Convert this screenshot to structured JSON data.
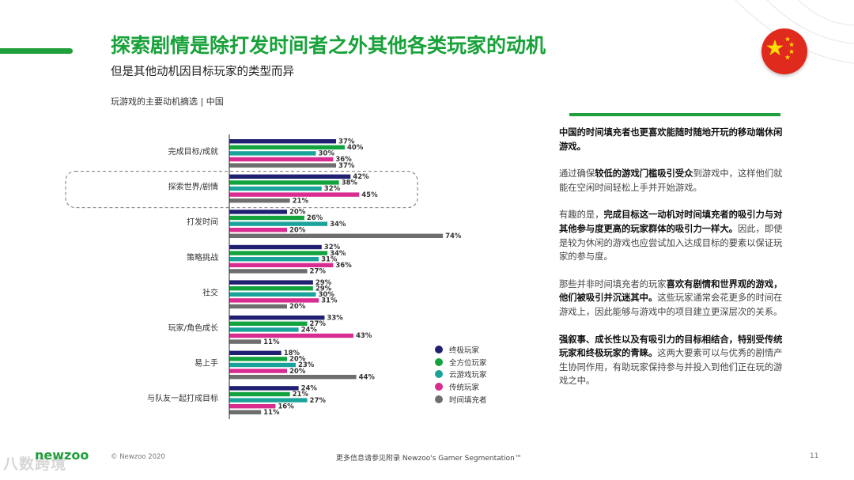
{
  "header": {
    "title": "探索剧情是除打发时间者之外其他各类玩家的动机",
    "subtitle": "但是其他动机因目标玩家的类型而异",
    "chart_label": "玩游戏的主要动机摘选 | 中国"
  },
  "colors": {
    "accent": "#1fa03a",
    "series": [
      "#1f2072",
      "#12a33f",
      "#1aa39b",
      "#d92c91",
      "#6e6e6e"
    ]
  },
  "chart_data": {
    "type": "bar",
    "orientation": "horizontal",
    "title": "玩游戏的主要动机摘选 | 中国",
    "categories": [
      "完成目标/成就",
      "探索世界/剧情",
      "打发时间",
      "策略挑战",
      "社交",
      "玩家/角色成长",
      "易上手",
      "与队友一起打成目标"
    ],
    "series": [
      {
        "name": "终极玩家",
        "values": [
          37,
          42,
          20,
          32,
          29,
          33,
          18,
          24
        ]
      },
      {
        "name": "全方位玩家",
        "values": [
          40,
          38,
          26,
          34,
          29,
          27,
          20,
          21
        ]
      },
      {
        "name": "云游戏玩家",
        "values": [
          30,
          32,
          34,
          31,
          30,
          24,
          23,
          27
        ]
      },
      {
        "name": "传统玩家",
        "values": [
          36,
          45,
          20,
          36,
          31,
          43,
          20,
          16
        ]
      },
      {
        "name": "时间填充者",
        "values": [
          37,
          21,
          74,
          27,
          20,
          11,
          44,
          11
        ]
      }
    ],
    "unit": "%",
    "xlim": [
      0,
      100
    ],
    "highlighted_category": "探索世界/剧情"
  },
  "sidebar": {
    "paragraphs": [
      {
        "parts": [
          {
            "b": true,
            "t": "中国的时间填充者也更喜欢能随时随地开玩的移动端休闲游戏。"
          }
        ]
      },
      {
        "parts": [
          {
            "b": false,
            "t": "通过确保"
          },
          {
            "b": true,
            "t": "较低的游戏门槛吸引受众"
          },
          {
            "b": false,
            "t": "到游戏中，这样他们就能在空闲时间轻松上手并开始游戏。"
          }
        ]
      },
      {
        "parts": [
          {
            "b": false,
            "t": "有趣的是，"
          },
          {
            "b": true,
            "t": "完成目标这一动机对时间填充者的吸引力与对其他参与度更高的玩家群体的吸引力一样大。"
          },
          {
            "b": false,
            "t": "因此，即使是较为休闲的游戏也应尝试加入达成目标的要素以保证玩家的参与度。"
          }
        ]
      },
      {
        "parts": [
          {
            "b": false,
            "t": "那些并非时间填充者的玩家"
          },
          {
            "b": true,
            "t": "喜欢有剧情和世界观的游戏，他们被吸引并沉迷其中。"
          },
          {
            "b": false,
            "t": "这些玩家通常会花更多的时间在游戏上，因此能够与游戏中的项目建立更深层次的关系。"
          }
        ]
      },
      {
        "parts": [
          {
            "b": true,
            "t": "强叙事、成长性以及有吸引力的目标相结合，特别受传统玩家和终极玩家的青睐。"
          },
          {
            "b": false,
            "t": "这两大要素可以与优秀的剧情产生协同作用，有助玩家保持参与并投入到他们正在玩的游戏之中。"
          }
        ]
      }
    ]
  },
  "footer": {
    "logo": "newzoo",
    "copyright": "© Newzoo 2020",
    "center": "更多信息请参见附录 Newzoo's Gamer Segmentation™",
    "page": "11",
    "watermark": "八数跨境"
  }
}
